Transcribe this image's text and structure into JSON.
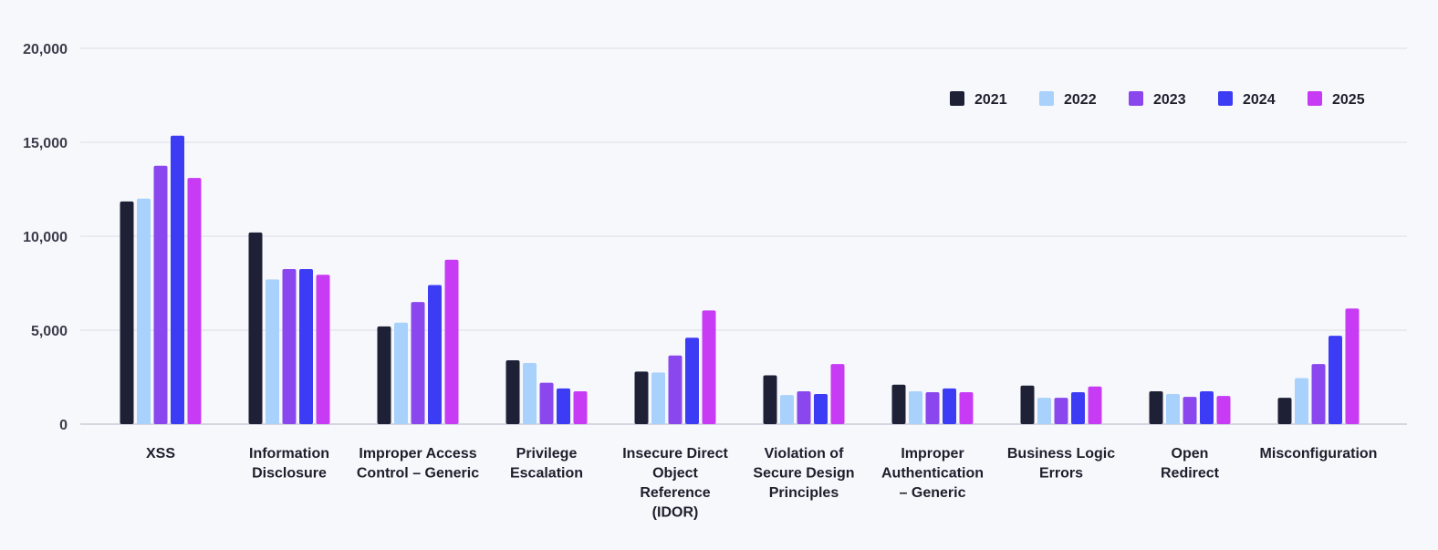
{
  "chart_data": {
    "type": "bar",
    "title": "",
    "xlabel": "",
    "ylabel": "",
    "ylim": [
      0,
      20000
    ],
    "yticks": [
      0,
      5000,
      10000,
      15000,
      20000
    ],
    "ytick_labels": [
      "0",
      "5,000",
      "10,000",
      "15,000",
      "20,000"
    ],
    "grid": true,
    "legend_position": "top-right",
    "categories": [
      [
        "XSS"
      ],
      [
        "Information",
        "Disclosure"
      ],
      [
        "Improper Access",
        "Control – Generic"
      ],
      [
        "Privilege",
        "Escalation"
      ],
      [
        "Insecure Direct",
        "Object",
        "Reference",
        "(IDOR)"
      ],
      [
        "Violation of",
        "Secure Design",
        "Principles"
      ],
      [
        "Improper",
        "Authentication",
        "– Generic"
      ],
      [
        "Business Logic",
        "Errors"
      ],
      [
        "Open",
        "Redirect"
      ],
      [
        "Misconfiguration"
      ]
    ],
    "series": [
      {
        "name": "2021",
        "color": "#1e2036",
        "values": [
          11850,
          10200,
          5200,
          3400,
          2800,
          2600,
          2100,
          2050,
          1750,
          1400
        ]
      },
      {
        "name": "2022",
        "color": "#a8d1fb",
        "values": [
          12000,
          7700,
          5400,
          3250,
          2750,
          1550,
          1750,
          1400,
          1600,
          2450
        ]
      },
      {
        "name": "2023",
        "color": "#8a47ee",
        "values": [
          13750,
          8250,
          6500,
          2200,
          3650,
          1750,
          1700,
          1400,
          1450,
          3200
        ]
      },
      {
        "name": "2024",
        "color": "#3d3cf5",
        "values": [
          15350,
          8250,
          7400,
          1900,
          4600,
          1600,
          1900,
          1700,
          1750,
          4700
        ]
      },
      {
        "name": "2025",
        "color": "#c73bf4",
        "values": [
          13100,
          7950,
          8750,
          1750,
          6050,
          3200,
          1700,
          2000,
          1500,
          6150
        ]
      }
    ]
  }
}
